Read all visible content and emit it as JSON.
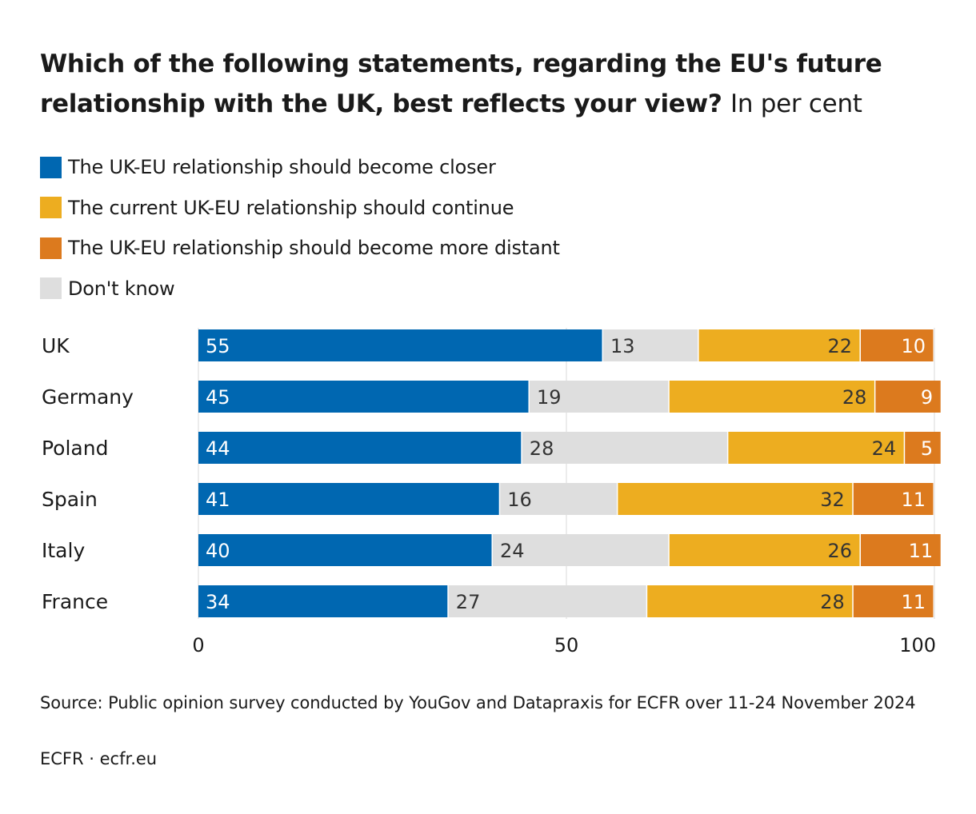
{
  "title": {
    "bold": "Which of the following statements, regarding the EU's future relationship with the UK, best reflects your view?",
    "unit": "In per cent"
  },
  "legend": [
    {
      "label": "The UK-EU relationship should become closer",
      "color": "#0067b1"
    },
    {
      "label": "The current UK-EU relationship should continue",
      "color": "#edad20"
    },
    {
      "label": "The UK-EU relationship should become more distant",
      "color": "#dc7a1e"
    },
    {
      "label": "Don't know",
      "color": "#dedede"
    }
  ],
  "chart_data": {
    "type": "bar",
    "orientation": "horizontal",
    "stacked": true,
    "title": "Which of the following statements, regarding the EU's future relationship with the UK, best reflects your view? In per cent",
    "categories": [
      "UK",
      "Germany",
      "Poland",
      "Spain",
      "Italy",
      "France"
    ],
    "series": [
      {
        "name": "The UK-EU relationship should become closer",
        "color": "#0067b1",
        "label_color": "#ffffff",
        "values": [
          55,
          45,
          44,
          41,
          40,
          34
        ]
      },
      {
        "name": "Don't know",
        "color": "#dedede",
        "label_color": "#333333",
        "values": [
          13,
          19,
          28,
          16,
          24,
          27
        ]
      },
      {
        "name": "The current UK-EU relationship should continue",
        "color": "#edad20",
        "label_color": "#333333",
        "values": [
          22,
          28,
          24,
          32,
          26,
          28
        ]
      },
      {
        "name": "The UK-EU relationship should become more distant",
        "color": "#dc7a1e",
        "label_color": "#ffffff",
        "values": [
          10,
          9,
          5,
          11,
          11,
          11
        ]
      }
    ],
    "xlim": [
      0,
      100
    ],
    "xticks": [
      "0",
      "50",
      "100"
    ],
    "xtick_values": [
      0,
      50,
      100
    ],
    "grid": true,
    "xlabel": "",
    "ylabel": ""
  },
  "source": "Source: Public opinion survey conducted by YouGov and Datapraxis for ECFR over 11-24 November 2024",
  "credit": "ECFR · ecfr.eu"
}
